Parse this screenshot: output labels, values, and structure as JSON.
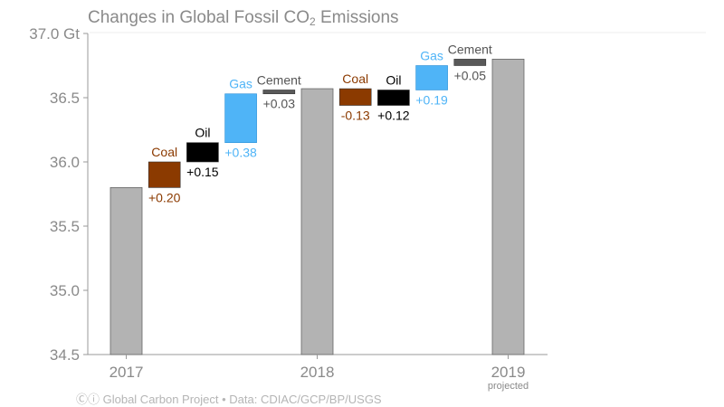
{
  "chart_data": {
    "type": "waterfall",
    "title": "Changes in Global Fossil CO",
    "title_subscript": "2",
    "title_suffix": " Emissions",
    "unit": "Gt",
    "ylim": [
      34.5,
      37.0
    ],
    "yticks": [
      "34.5",
      "35.0",
      "35.5",
      "36.0",
      "36.5",
      "37.0 Gt"
    ],
    "ytick_values": [
      34.5,
      35.0,
      35.5,
      36.0,
      36.5,
      37.0
    ],
    "grid": false,
    "colors": {
      "total": "#b3b3b3",
      "Coal": "#8b3a00",
      "Oil": "#000000",
      "Gas": "#4fb4f7",
      "Cement": "#595959"
    },
    "label_colors": {
      "Coal": "#8b3a00",
      "Oil": "#000000",
      "Gas": "#4fb4f7",
      "Cement": "#555555"
    },
    "totals": [
      {
        "year": "2017",
        "value": 35.8,
        "note": ""
      },
      {
        "year": "2018",
        "value": 36.57,
        "note": ""
      },
      {
        "year": "2019",
        "value": 36.8,
        "note": "projected"
      }
    ],
    "steps": [
      [
        {
          "name": "Coal",
          "change": 0.2,
          "label": "+0.20"
        },
        {
          "name": "Oil",
          "change": 0.15,
          "label": "+0.15"
        },
        {
          "name": "Gas",
          "change": 0.38,
          "label": "+0.38"
        },
        {
          "name": "Cement",
          "change": 0.03,
          "label": "+0.03"
        }
      ],
      [
        {
          "name": "Coal",
          "change": -0.13,
          "label": "-0.13"
        },
        {
          "name": "Oil",
          "change": 0.12,
          "label": "+0.12"
        },
        {
          "name": "Gas",
          "change": 0.19,
          "label": "+0.19"
        },
        {
          "name": "Cement",
          "change": 0.05,
          "label": "+0.05"
        }
      ]
    ]
  },
  "footer": "Ⓒⓘ Global Carbon Project  •  Data: CDIAC/GCP/BP/USGS"
}
